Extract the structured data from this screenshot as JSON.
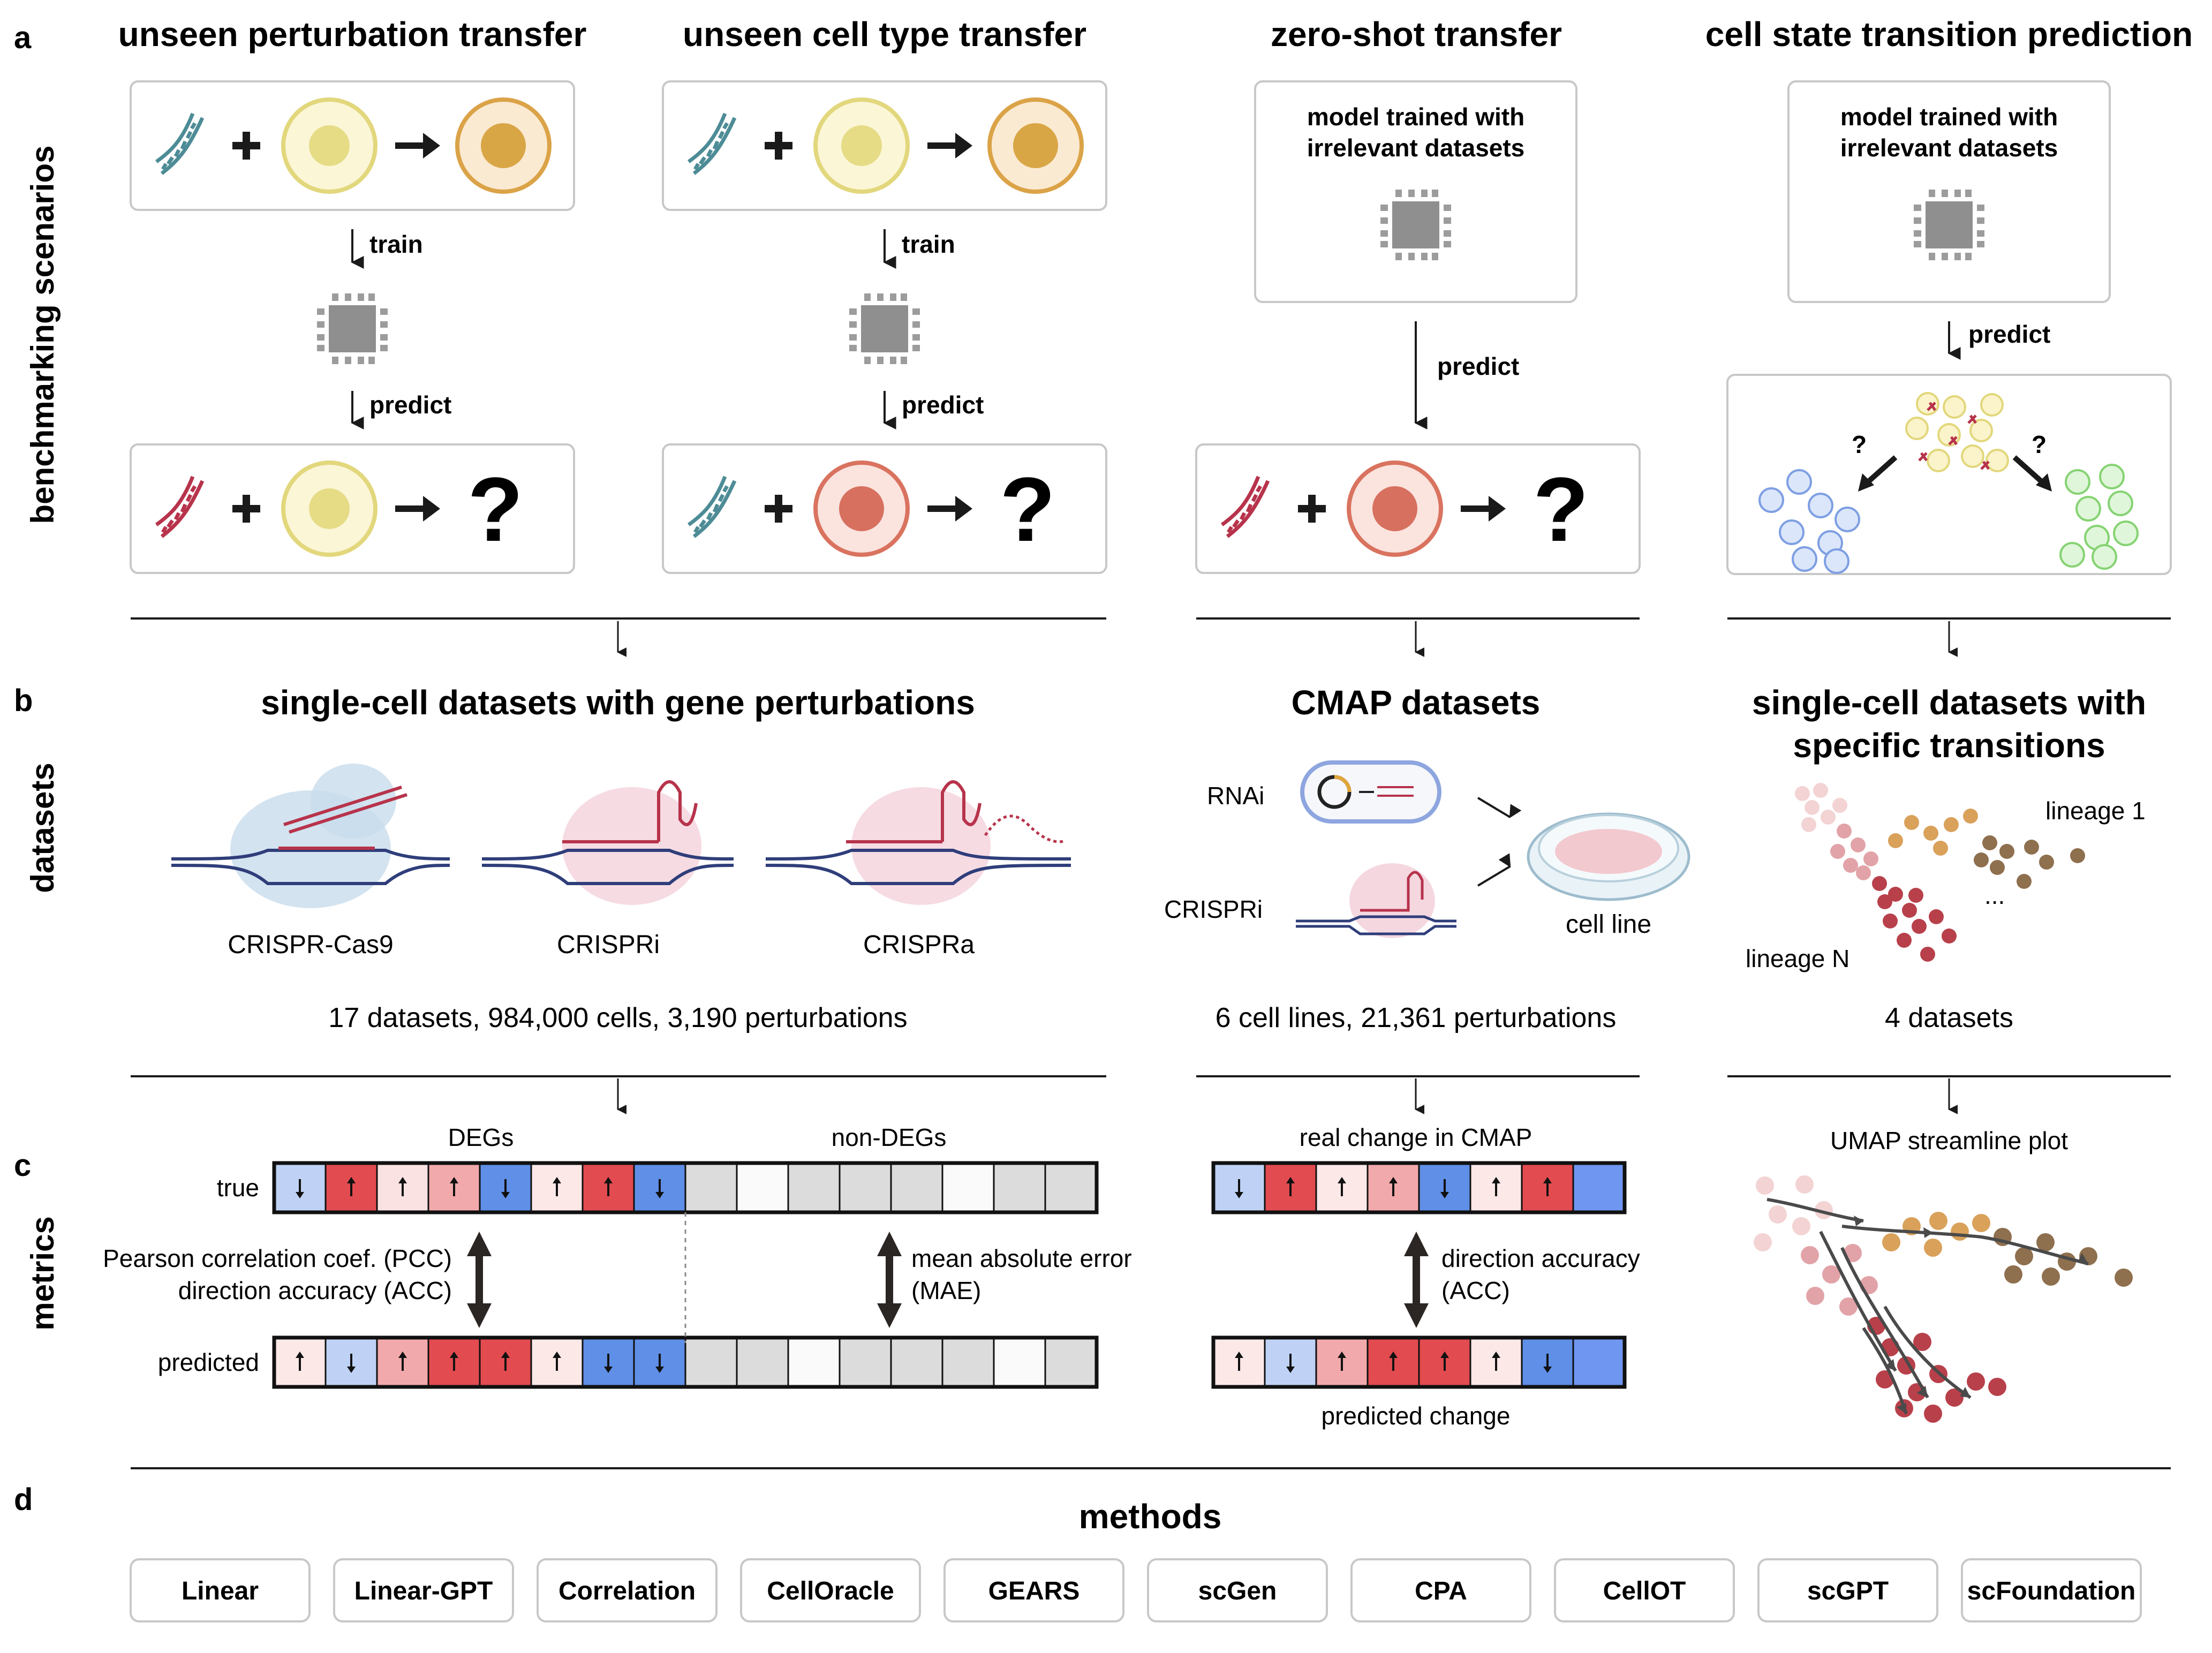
{
  "panels": {
    "a": {
      "letter": "a",
      "side_label": "benchmarking scenarios",
      "scenarios": [
        {
          "title": "unseen perturbation transfer",
          "train_label": "train",
          "predict_label": "predict",
          "question": "?"
        },
        {
          "title": "unseen cell type transfer",
          "train_label": "train",
          "predict_label": "predict",
          "question": "?"
        },
        {
          "title": "zero-shot transfer",
          "model_text_1": "model trained with",
          "model_text_2": "irrelevant datasets",
          "predict_label": "predict",
          "question": "?"
        },
        {
          "title": "cell state transition prediction",
          "model_text_1": "model trained with",
          "model_text_2": "irrelevant datasets",
          "predict_label": "predict",
          "question": "?"
        }
      ]
    },
    "b": {
      "letter": "b",
      "side_label": "datasets",
      "sc_title": "single-cell datasets with gene perturbations",
      "crispr_labels": [
        "CRISPR-Cas9",
        "CRISPRi",
        "CRISPRa"
      ],
      "sc_summary": "17 datasets, 984,000 cells, 3,190 perturbations",
      "cmap_title": "CMAP datasets",
      "rnai_label": "RNAi",
      "crispri_label": "CRISPRi",
      "cellline_label": "cell line",
      "cmap_summary": "6 cell lines, 21,361 perturbations",
      "trans_title_1": "single-cell datasets with",
      "trans_title_2": "specific transitions",
      "lineage_1": "lineage 1",
      "lineage_n": "lineage N",
      "ellipsis": "...",
      "trans_summary": "4 datasets"
    },
    "c": {
      "letter": "c",
      "side_label": "metrics",
      "degs_label": "DEGs",
      "nondegs_label": "non-DEGs",
      "true_label": "true",
      "predicted_label": "predicted",
      "pcc_line1": "Pearson correlation coef. (PCC)",
      "pcc_line2": "direction accuracy (ACC)",
      "mae_line1": "mean absolute error",
      "mae_line2": "(MAE)",
      "cmap_real": "real change in CMAP",
      "cmap_dir1": "direction accuracy",
      "cmap_dir2": "(ACC)",
      "cmap_pred": "predicted change",
      "umap_title": "UMAP streamline plot",
      "true_cells": [
        {
          "color": "#bfd2f5",
          "arrow": "down"
        },
        {
          "color": "#e24b50",
          "arrow": "up"
        },
        {
          "color": "#fbe2e2",
          "arrow": "up"
        },
        {
          "color": "#f2a9ab",
          "arrow": "up"
        },
        {
          "color": "#5f8fe6",
          "arrow": "down"
        },
        {
          "color": "#fde8e8",
          "arrow": "up"
        },
        {
          "color": "#e24b50",
          "arrow": "up"
        },
        {
          "color": "#5f8fe6",
          "arrow": "down"
        },
        {
          "color": "#dcdcdc",
          "arrow": ""
        },
        {
          "color": "#fafafa",
          "arrow": ""
        },
        {
          "color": "#dcdcdc",
          "arrow": ""
        },
        {
          "color": "#dcdcdc",
          "arrow": ""
        },
        {
          "color": "#dcdcdc",
          "arrow": ""
        },
        {
          "color": "#fafafa",
          "arrow": ""
        },
        {
          "color": "#dcdcdc",
          "arrow": ""
        },
        {
          "color": "#dcdcdc",
          "arrow": ""
        }
      ],
      "pred_cells": [
        {
          "color": "#fde8e8",
          "arrow": "up"
        },
        {
          "color": "#bfd2f5",
          "arrow": "down"
        },
        {
          "color": "#f2a9ab",
          "arrow": "up"
        },
        {
          "color": "#e24b50",
          "arrow": "up"
        },
        {
          "color": "#e24b50",
          "arrow": "up"
        },
        {
          "color": "#fde8e8",
          "arrow": "up"
        },
        {
          "color": "#5f8fe6",
          "arrow": "down"
        },
        {
          "color": "#5f8fe6",
          "arrow": "down"
        },
        {
          "color": "#dcdcdc",
          "arrow": ""
        },
        {
          "color": "#dcdcdc",
          "arrow": ""
        },
        {
          "color": "#fafafa",
          "arrow": ""
        },
        {
          "color": "#dcdcdc",
          "arrow": ""
        },
        {
          "color": "#dcdcdc",
          "arrow": ""
        },
        {
          "color": "#dcdcdc",
          "arrow": ""
        },
        {
          "color": "#fafafa",
          "arrow": ""
        },
        {
          "color": "#dcdcdc",
          "arrow": ""
        }
      ],
      "cmap_true_cells": [
        {
          "color": "#bfd2f5",
          "arrow": "down"
        },
        {
          "color": "#e24b50",
          "arrow": "up"
        },
        {
          "color": "#fde8e8",
          "arrow": "up"
        },
        {
          "color": "#f2a9ab",
          "arrow": "up"
        },
        {
          "color": "#5f8fe6",
          "arrow": "down"
        },
        {
          "color": "#fde8e8",
          "arrow": "up"
        },
        {
          "color": "#e24b50",
          "arrow": "up"
        },
        {
          "color": "#6f96f0",
          "arrow": ""
        }
      ],
      "cmap_pred_cells": [
        {
          "color": "#fde8e8",
          "arrow": "up"
        },
        {
          "color": "#bfd2f5",
          "arrow": "down"
        },
        {
          "color": "#f2a9ab",
          "arrow": "up"
        },
        {
          "color": "#e24b50",
          "arrow": "up"
        },
        {
          "color": "#e24b50",
          "arrow": "up"
        },
        {
          "color": "#fde8e8",
          "arrow": "up"
        },
        {
          "color": "#5f8fe6",
          "arrow": "down"
        },
        {
          "color": "#6f96f0",
          "arrow": ""
        }
      ]
    },
    "d": {
      "letter": "d",
      "title": "methods",
      "methods": [
        "Linear",
        "Linear-GPT",
        "Correlation",
        "CellOracle",
        "GEARS",
        "scGen",
        "CPA",
        "CellOT",
        "scGPT",
        "scFoundation"
      ]
    }
  },
  "colors": {
    "yellow_cell_fill": "#fbf6d6",
    "yellow_cell_stroke": "#e2d77c",
    "yellow_nucleus": "#e6dc86",
    "orange_cell_fill": "#fbead2",
    "orange_cell_stroke": "#dba348",
    "orange_nucleus": "#d9a646",
    "red_cell_fill": "#fbe3de",
    "red_cell_stroke": "#d9735f",
    "red_nucleus": "#d7705f",
    "teal_dna": "#4d8c96",
    "red_dna": "#b7334b",
    "chip": "#8f8f8f"
  }
}
